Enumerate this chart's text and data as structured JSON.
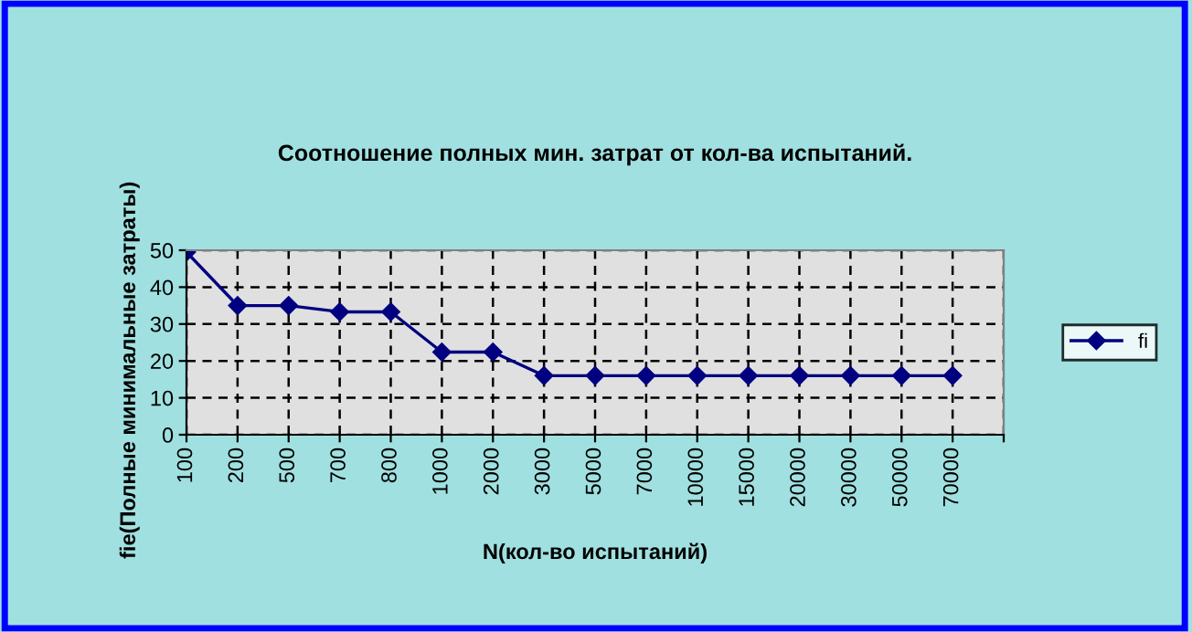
{
  "chart_data": {
    "type": "line",
    "title": "Соотношение полных мин. затрат от кол-ва испытаний.",
    "xlabel": "N(кол-во испытаний)",
    "ylabel": "fie(Полные минимальные затраты)",
    "categories": [
      "100",
      "200",
      "500",
      "700",
      "800",
      "1000",
      "2000",
      "3000",
      "5000",
      "7000",
      "10000",
      "15000",
      "20000",
      "30000",
      "50000",
      "70000",
      null
    ],
    "series": [
      {
        "name": "fi",
        "color": "#000080",
        "values": [
          49.5,
          35,
          35,
          33.3,
          33.3,
          22.4,
          22.4,
          16,
          16,
          16,
          16,
          16,
          16,
          16,
          16,
          16,
          null
        ]
      }
    ],
    "ylim": [
      0,
      50
    ],
    "yticks": [
      0,
      10,
      20,
      30,
      40,
      50
    ],
    "grid": true,
    "legend": "right",
    "marker": "diamond",
    "line_style": "solid"
  }
}
